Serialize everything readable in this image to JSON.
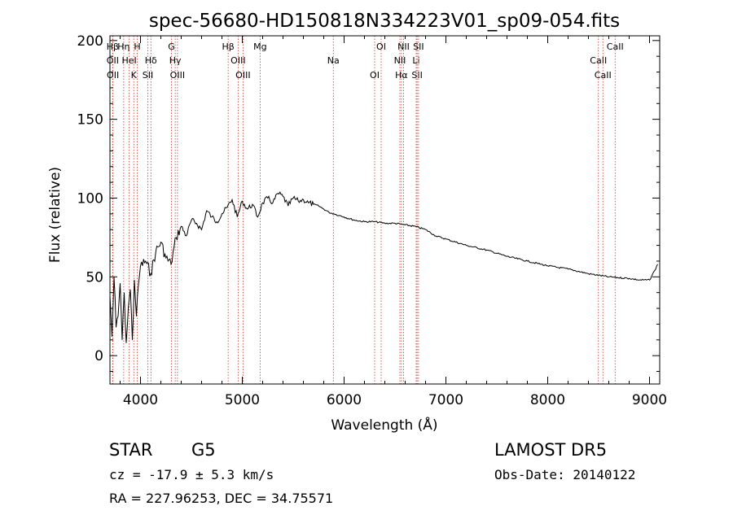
{
  "chart_data": {
    "type": "line",
    "title": "spec-56680-HD150818N334223V01_sp09-054.fits",
    "xlabel": "Wavelength (Å)",
    "ylabel": "Flux (relative)",
    "xlim": [
      3700,
      9100
    ],
    "ylim": [
      -18,
      203
    ],
    "x_ticks": [
      4000,
      5000,
      6000,
      7000,
      8000,
      9000
    ],
    "y_ticks": [
      0,
      50,
      100,
      150,
      200
    ],
    "grid": false,
    "line_color": "#000000",
    "marker_color": "#c0392b",
    "series": [
      {
        "x": [
          3700,
          3720,
          3740,
          3760,
          3780,
          3800,
          3820,
          3840,
          3860,
          3880,
          3900,
          3920,
          3940,
          3960,
          3980,
          4000,
          4050,
          4100,
          4150,
          4200,
          4250,
          4300,
          4350,
          4400,
          4450,
          4500,
          4550,
          4600,
          4650,
          4700,
          4750,
          4800,
          4850,
          4900,
          4950,
          5000,
          5050,
          5100,
          5150,
          5200,
          5250,
          5300,
          5350,
          5400,
          5450,
          5500,
          5550,
          5600,
          5650,
          5700,
          5750,
          5800,
          5850,
          5900,
          5950,
          6000,
          6100,
          6200,
          6300,
          6400,
          6500,
          6600,
          6700,
          6800,
          6900,
          7000,
          7200,
          7400,
          7600,
          7800,
          8000,
          8200,
          8400,
          8600,
          8800,
          8900,
          9000,
          9050,
          9080
        ],
        "y": [
          38,
          12,
          50,
          18,
          25,
          46,
          10,
          40,
          8,
          30,
          42,
          10,
          48,
          25,
          45,
          57,
          60,
          52,
          66,
          72,
          62,
          58,
          75,
          82,
          76,
          86,
          84,
          80,
          92,
          88,
          85,
          90,
          94,
          99,
          88,
          98,
          93,
          96,
          88,
          97,
          100,
          97,
          103,
          101,
          95,
          100,
          98,
          99,
          97,
          96,
          95,
          93,
          91,
          90,
          89,
          88,
          86,
          85,
          85,
          84,
          84,
          83,
          82,
          80,
          76,
          74,
          70,
          67,
          63,
          60,
          57,
          55,
          52,
          50,
          49,
          48,
          48,
          54,
          58
        ]
      }
    ],
    "line_markers": [
      {
        "label": "Hβ",
        "wavelength": 3727
      },
      {
        "label": "OII",
        "wavelength": 3727
      },
      {
        "label": "OII",
        "wavelength": 3729
      },
      {
        "label": "Hη",
        "wavelength": 3835
      },
      {
        "label": "HeI",
        "wavelength": 3889
      },
      {
        "label": "K",
        "wavelength": 3934
      },
      {
        "label": "H",
        "wavelength": 3968
      },
      {
        "label": "Hδ",
        "wavelength": 4102
      },
      {
        "label": "SII",
        "wavelength": 4072
      },
      {
        "label": "G",
        "wavelength": 4304
      },
      {
        "label": "Hγ",
        "wavelength": 4341
      },
      {
        "label": "OIII",
        "wavelength": 4363
      },
      {
        "label": "Hβ",
        "wavelength": 4861
      },
      {
        "label": "OIII",
        "wavelength": 4959
      },
      {
        "label": "OIII",
        "wavelength": 5007
      },
      {
        "label": "Mg",
        "wavelength": 5175
      },
      {
        "label": "Na",
        "wavelength": 5894
      },
      {
        "label": "OI",
        "wavelength": 6300
      },
      {
        "label": "OI",
        "wavelength": 6364
      },
      {
        "label": "NII",
        "wavelength": 6548
      },
      {
        "label": "Hα",
        "wavelength": 6563
      },
      {
        "label": "NII",
        "wavelength": 6584
      },
      {
        "label": "Li",
        "wavelength": 6708
      },
      {
        "label": "SII",
        "wavelength": 6717
      },
      {
        "label": "SII",
        "wavelength": 6731
      },
      {
        "label": "CaII",
        "wavelength": 8498
      },
      {
        "label": "CaII",
        "wavelength": 8542
      },
      {
        "label": "CaII",
        "wavelength": 8662
      }
    ]
  },
  "info": {
    "object_class": "STAR",
    "subclass": "G5",
    "release": "LAMOST DR5",
    "cz": "cz = -17.9 ± 5.3 km/s",
    "obs_date": "Obs-Date: 20140122",
    "coords": "RA = 227.96253, DEC =  34.75571"
  }
}
